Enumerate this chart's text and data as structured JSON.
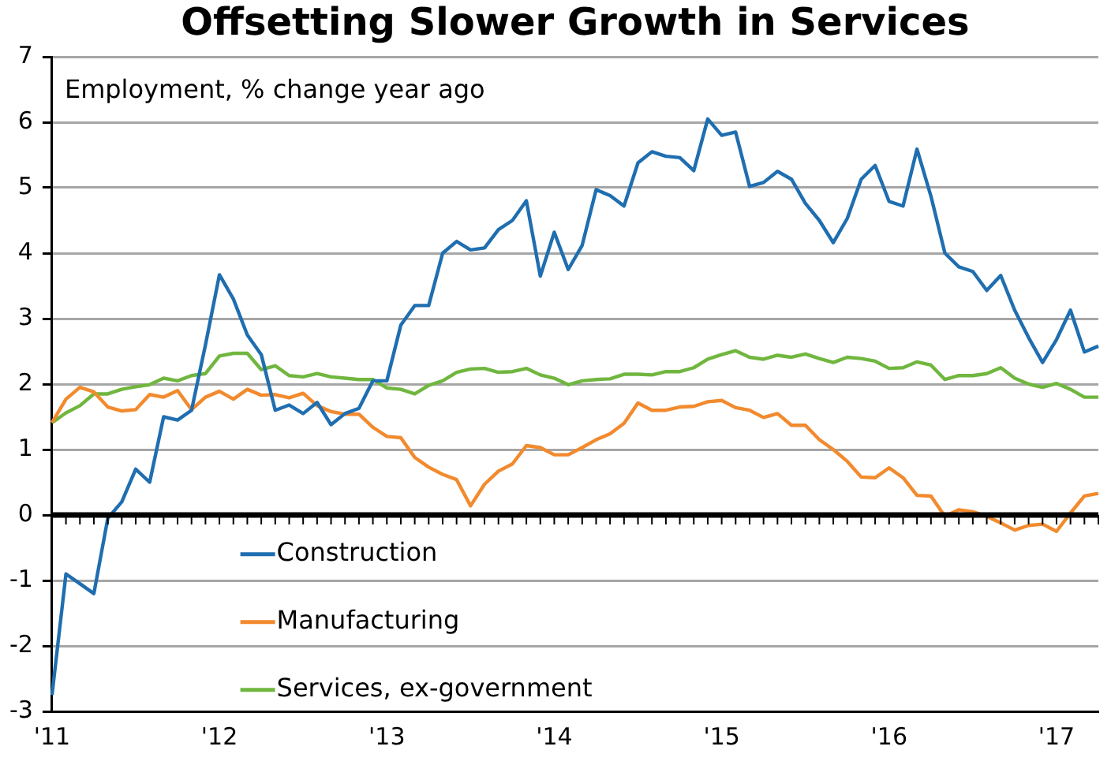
{
  "chart_data": {
    "type": "line",
    "title": "Offsetting Slower Growth in Services",
    "ylabel": "Employment, % change year ago",
    "categories": [
      "'11",
      null,
      null,
      null,
      null,
      null,
      null,
      null,
      null,
      null,
      null,
      null,
      "'12",
      null,
      null,
      null,
      null,
      null,
      null,
      null,
      null,
      null,
      null,
      null,
      "'13",
      null,
      null,
      null,
      null,
      null,
      null,
      null,
      null,
      null,
      null,
      null,
      "'14",
      null,
      null,
      null,
      null,
      null,
      null,
      null,
      null,
      null,
      null,
      null,
      "'15",
      null,
      null,
      null,
      null,
      null,
      null,
      null,
      null,
      null,
      null,
      null,
      "'16",
      null,
      null,
      null,
      null,
      null,
      null,
      null,
      null,
      null,
      null,
      null,
      "'17",
      null,
      null,
      null
    ],
    "series": [
      {
        "name": "Construction",
        "color": "#1f6eb0",
        "values": [
          -2.75,
          -0.9,
          -1.05,
          -1.2,
          -0.05,
          0.2,
          0.7,
          0.5,
          1.5,
          1.45,
          1.6,
          2.6,
          3.67,
          3.3,
          2.75,
          2.45,
          1.6,
          1.68,
          1.55,
          1.72,
          1.38,
          1.55,
          1.63,
          2.05,
          2.05,
          2.9,
          3.2,
          3.2,
          4.0,
          4.18,
          4.05,
          4.08,
          4.36,
          4.5,
          4.8,
          3.65,
          4.32,
          3.75,
          4.12,
          4.97,
          4.88,
          4.72,
          5.38,
          5.55,
          5.48,
          5.46,
          5.26,
          6.05,
          5.8,
          5.85,
          5.02,
          5.08,
          5.25,
          5.13,
          4.76,
          4.5,
          4.16,
          4.53,
          5.13,
          5.34,
          4.79,
          4.72,
          5.59,
          4.87,
          4.0,
          3.79,
          3.72,
          3.43,
          3.66,
          3.13,
          2.71,
          2.33,
          2.68,
          3.13,
          2.49,
          2.58
        ]
      },
      {
        "name": "Manufacturing",
        "color": "#f28a2e",
        "values": [
          1.41,
          1.77,
          1.95,
          1.88,
          1.65,
          1.59,
          1.61,
          1.84,
          1.8,
          1.9,
          1.61,
          1.8,
          1.89,
          1.77,
          1.92,
          1.83,
          1.84,
          1.79,
          1.86,
          1.67,
          1.58,
          1.54,
          1.54,
          1.34,
          1.2,
          1.18,
          0.88,
          0.73,
          0.62,
          0.54,
          0.14,
          0.47,
          0.67,
          0.78,
          1.06,
          1.03,
          0.92,
          0.92,
          1.03,
          1.15,
          1.24,
          1.4,
          1.71,
          1.6,
          1.6,
          1.65,
          1.66,
          1.73,
          1.75,
          1.64,
          1.6,
          1.49,
          1.55,
          1.37,
          1.37,
          1.15,
          1.0,
          0.82,
          0.58,
          0.57,
          0.72,
          0.57,
          0.3,
          0.29,
          -0.02,
          0.08,
          0.05,
          -0.02,
          -0.12,
          -0.23,
          -0.16,
          -0.14,
          -0.25,
          0.03,
          0.29,
          0.33
        ]
      },
      {
        "name": "Services, ex-government",
        "color": "#70b63f",
        "values": [
          1.41,
          1.56,
          1.67,
          1.85,
          1.85,
          1.92,
          1.96,
          1.99,
          2.09,
          2.05,
          2.13,
          2.16,
          2.43,
          2.47,
          2.47,
          2.22,
          2.28,
          2.13,
          2.11,
          2.16,
          2.11,
          2.09,
          2.07,
          2.07,
          1.94,
          1.92,
          1.85,
          1.98,
          2.05,
          2.18,
          2.23,
          2.24,
          2.18,
          2.19,
          2.24,
          2.14,
          2.09,
          1.99,
          2.05,
          2.07,
          2.08,
          2.15,
          2.15,
          2.14,
          2.19,
          2.19,
          2.25,
          2.38,
          2.45,
          2.51,
          2.41,
          2.38,
          2.44,
          2.41,
          2.46,
          2.39,
          2.33,
          2.41,
          2.39,
          2.35,
          2.24,
          2.25,
          2.34,
          2.29,
          2.07,
          2.13,
          2.13,
          2.16,
          2.25,
          2.09,
          2.0,
          1.95,
          2.01,
          1.92,
          1.8,
          1.8
        ]
      }
    ],
    "ylim": [
      -3,
      7
    ],
    "yticks": [
      -3,
      -2,
      -1,
      0,
      1,
      2,
      3,
      4,
      5,
      6,
      7
    ],
    "grid": "y",
    "legend": "bottom left",
    "marker": "none",
    "line_style": "solid"
  }
}
